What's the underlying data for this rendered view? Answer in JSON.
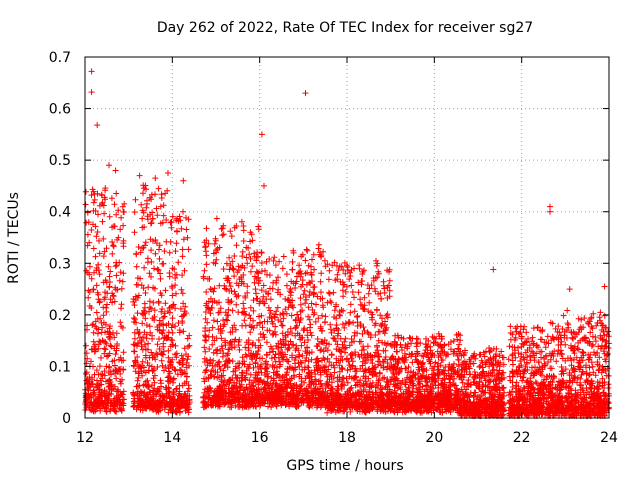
{
  "chart_data": {
    "type": "scatter",
    "title": "Day 262 of 2022, Rate Of TEC Index for receiver sg27",
    "xlabel": "GPS time / hours",
    "ylabel": "ROTI / TECUs",
    "xlim": [
      12,
      24
    ],
    "ylim": [
      0,
      0.7
    ],
    "xticks": [
      12,
      14,
      16,
      18,
      20,
      22,
      24
    ],
    "yticks": [
      0,
      0.1,
      0.2,
      0.3,
      0.4,
      0.5,
      0.6,
      0.7
    ],
    "xtick_labels": [
      "12",
      "14",
      "16",
      "18",
      "20",
      "22",
      "24"
    ],
    "ytick_labels": [
      "0",
      "0.1",
      "0.2",
      "0.3",
      "0.4",
      "0.5",
      "0.6",
      "0.7"
    ],
    "grid": true,
    "marker": "+",
    "color": "#ff0000",
    "segments": [
      {
        "start": 12.0,
        "end": 12.9,
        "typical_min": 0.02,
        "typical_max": 0.45
      },
      {
        "start": 13.1,
        "end": 13.9,
        "typical_min": 0.02,
        "typical_max": 0.46
      },
      {
        "start": 13.9,
        "end": 14.4,
        "typical_min": 0.02,
        "typical_max": 0.4
      },
      {
        "start": 14.7,
        "end": 16.0,
        "typical_min": 0.03,
        "typical_max": 0.38
      },
      {
        "start": 16.0,
        "end": 17.5,
        "typical_min": 0.03,
        "typical_max": 0.33
      },
      {
        "start": 17.5,
        "end": 19.0,
        "typical_min": 0.02,
        "typical_max": 0.3
      },
      {
        "start": 19.0,
        "end": 20.6,
        "typical_min": 0.02,
        "typical_max": 0.16
      },
      {
        "start": 20.6,
        "end": 21.6,
        "typical_min": 0.01,
        "typical_max": 0.13
      },
      {
        "start": 21.7,
        "end": 22.9,
        "typical_min": 0.01,
        "typical_max": 0.18
      },
      {
        "start": 22.9,
        "end": 24.0,
        "typical_min": 0.01,
        "typical_max": 0.2
      }
    ],
    "outliers": [
      {
        "x": 12.15,
        "y": 0.672
      },
      {
        "x": 12.15,
        "y": 0.632
      },
      {
        "x": 12.28,
        "y": 0.568
      },
      {
        "x": 12.55,
        "y": 0.49
      },
      {
        "x": 12.7,
        "y": 0.48
      },
      {
        "x": 13.25,
        "y": 0.47
      },
      {
        "x": 13.9,
        "y": 0.475
      },
      {
        "x": 14.25,
        "y": 0.46
      },
      {
        "x": 16.05,
        "y": 0.55
      },
      {
        "x": 16.1,
        "y": 0.45
      },
      {
        "x": 17.05,
        "y": 0.63
      },
      {
        "x": 21.35,
        "y": 0.288
      },
      {
        "x": 22.65,
        "y": 0.41
      },
      {
        "x": 22.65,
        "y": 0.4
      },
      {
        "x": 23.1,
        "y": 0.25
      },
      {
        "x": 23.9,
        "y": 0.255
      }
    ]
  }
}
